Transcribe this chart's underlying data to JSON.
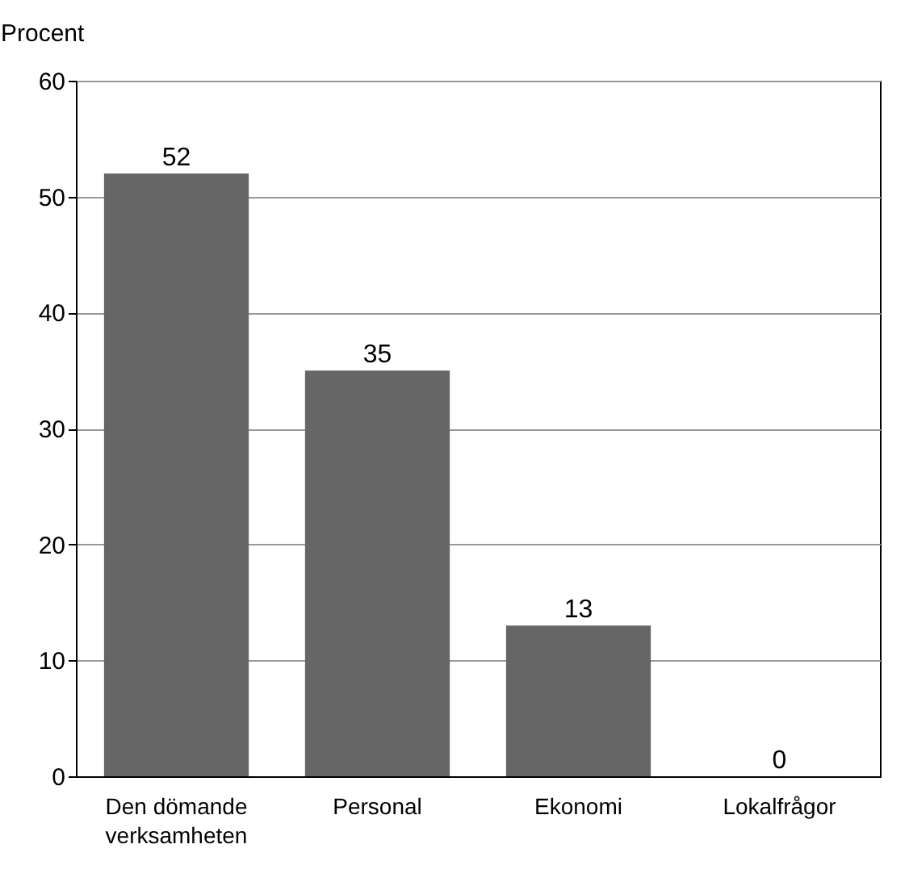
{
  "chart_data": {
    "type": "bar",
    "ylabel": "Procent",
    "categories": [
      "Den dömande verksamheten",
      "Personal",
      "Ekonomi",
      "Lokalfrågor"
    ],
    "values": [
      52,
      35,
      13,
      0
    ],
    "color": "#666666",
    "ylim": [
      0,
      60
    ],
    "yticks": [
      0,
      10,
      20,
      30,
      40,
      50,
      60
    ],
    "grid": "y",
    "data_labels": true
  }
}
